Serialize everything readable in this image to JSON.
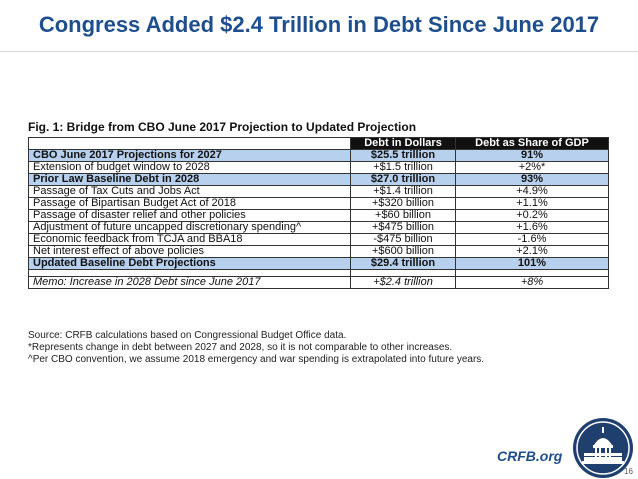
{
  "slide": {
    "title": "Congress Added $2.4 Trillion in Debt Since June 2017",
    "page_number": "16"
  },
  "figure": {
    "title": "Fig. 1: Bridge from CBO June 2017 Projection to Updated Projection",
    "headers": {
      "dollars": "Debt in Dollars",
      "gdp": "Debt as Share of GDP"
    },
    "rows": [
      {
        "label": "CBO June 2017 Projections for 2027",
        "dollars": "$25.5 trillion",
        "gdp": "91%",
        "highlight": true
      },
      {
        "label": "Extension of budget window to 2028",
        "dollars": "+$1.5 trillion",
        "gdp": "+2%*",
        "highlight": false
      },
      {
        "label": "Prior Law Baseline Debt in 2028",
        "dollars": "$27.0 trillion",
        "gdp": "93%",
        "highlight": true
      },
      {
        "label": "Passage of Tax Cuts and Jobs Act",
        "dollars": "+$1.4 trillion",
        "gdp": "+4.9%",
        "highlight": false
      },
      {
        "label": "Passage of Bipartisan Budget Act of 2018",
        "dollars": "+$320 billion",
        "gdp": "+1.1%",
        "highlight": false
      },
      {
        "label": "Passage of disaster relief and other policies",
        "dollars": "+$60 billion",
        "gdp": "+0.2%",
        "highlight": false
      },
      {
        "label": "Adjustment of future uncapped discretionary spending^",
        "dollars": "+$475 billion",
        "gdp": "+1.6%",
        "highlight": false
      },
      {
        "label": "Economic feedback from TCJA and BBA18",
        "dollars": "-$475 billion",
        "gdp": "-1.6%",
        "highlight": false
      },
      {
        "label": "Net interest effect of above policies",
        "dollars": "+$600 billion",
        "gdp": "+2.1%",
        "highlight": false
      },
      {
        "label": "Updated Baseline Debt Projections",
        "dollars": "$29.4 trillion",
        "gdp": "101%",
        "highlight": true
      }
    ],
    "memo": {
      "label": "Memo: Increase in 2028 Debt since June 2017",
      "dollars": "+$2.4 trillion",
      "gdp": "+8%"
    },
    "notes": [
      "Source: CRFB calculations based on Congressional Budget Office data.",
      "*Represents change in debt between 2027 and 2028, so it is not comparable to other increases.",
      "^Per CBO convention, we assume 2018 emergency and war spending is extrapolated into future years."
    ]
  },
  "branding": {
    "text": "CRFB.org"
  },
  "colors": {
    "title": "#1f4e8c",
    "highlight": "#b7d0ee",
    "header_bg": "#111111",
    "seal": "#1f3f6e"
  }
}
